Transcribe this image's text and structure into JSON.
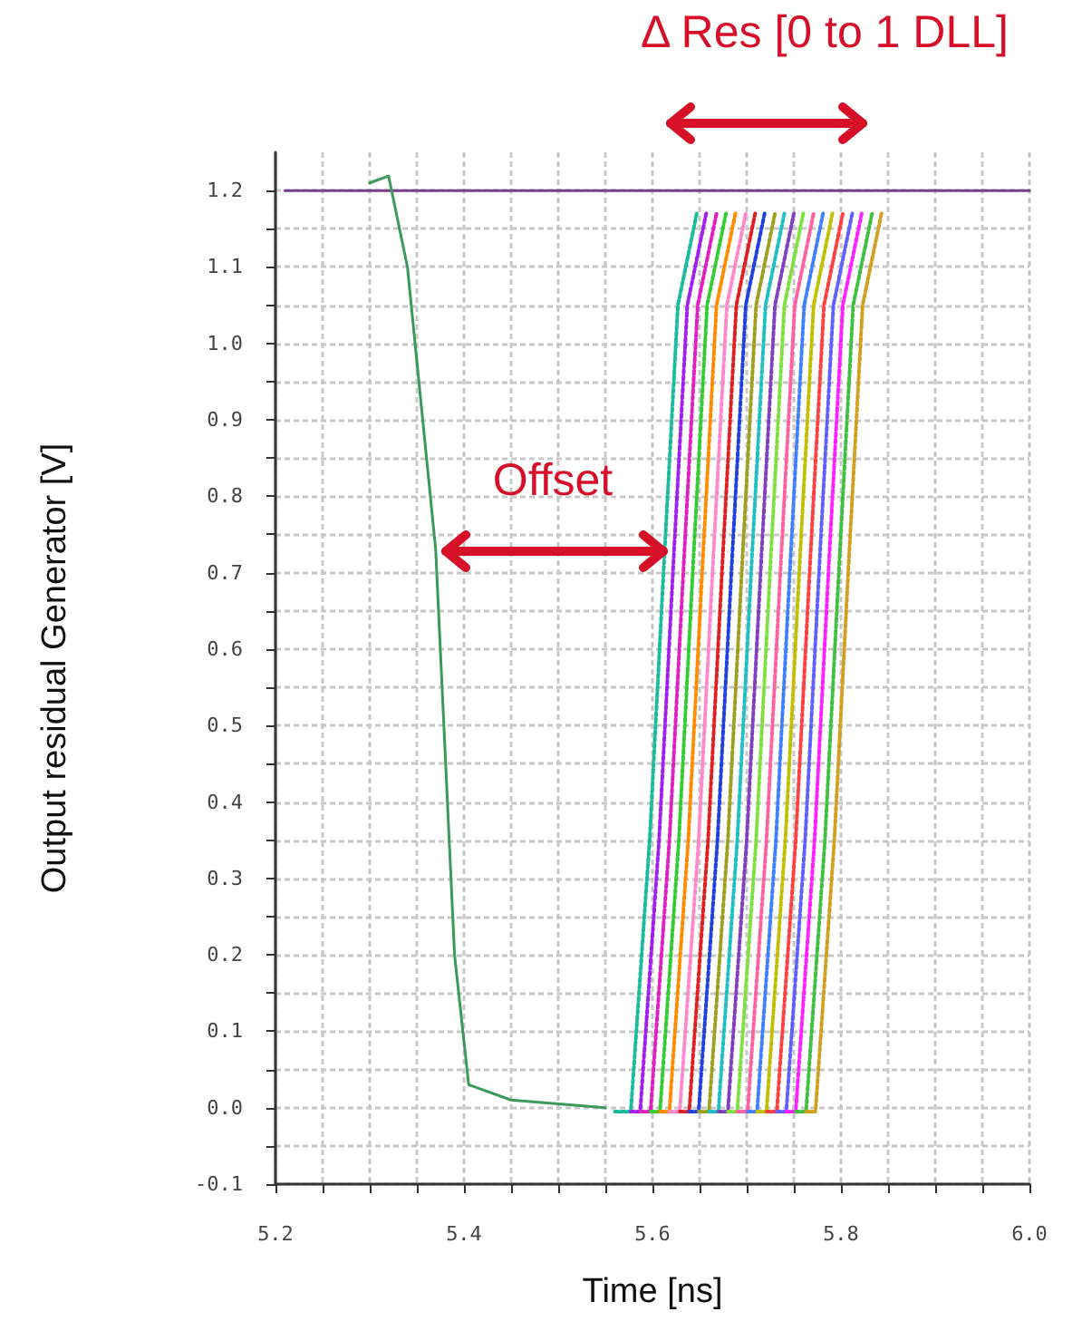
{
  "chart_data": {
    "type": "line",
    "xlabel": "Time [ns]",
    "ylabel": "Output residual Generator [V]",
    "annotations": [
      "Δ Res [0 to 1 DLL]",
      "Offset"
    ],
    "xlim": [
      5.2,
      6.0
    ],
    "xticks": [
      {
        "value": 5.2,
        "label": "5.2"
      },
      {
        "value": 5.25,
        "label": null
      },
      {
        "value": 5.3,
        "label": null
      },
      {
        "value": 5.35,
        "label": null
      },
      {
        "value": 5.4,
        "label": "5.4"
      },
      {
        "value": 5.45,
        "label": null
      },
      {
        "value": 5.5,
        "label": null
      },
      {
        "value": 5.55,
        "label": null
      },
      {
        "value": 5.6,
        "label": "5.6"
      },
      {
        "value": 5.65,
        "label": null
      },
      {
        "value": 5.7,
        "label": null
      },
      {
        "value": 5.75,
        "label": null
      },
      {
        "value": 5.8,
        "label": "5.8"
      },
      {
        "value": 5.85,
        "label": null
      },
      {
        "value": 5.9,
        "label": null
      },
      {
        "value": 5.95,
        "label": null
      },
      {
        "value": 6.0,
        "label": "6.0"
      }
    ],
    "ylim": [
      -0.1,
      1.25
    ],
    "yticks": [
      {
        "value": -0.1,
        "label": "-0.1"
      },
      {
        "value": -0.05,
        "label": null
      },
      {
        "value": 0,
        "label": "0.0"
      },
      {
        "value": 0.05,
        "label": null
      },
      {
        "value": 0.1,
        "label": "0.1"
      },
      {
        "value": 0.15,
        "label": null
      },
      {
        "value": 0.2,
        "label": "0.2"
      },
      {
        "value": 0.25,
        "label": null
      },
      {
        "value": 0.3,
        "label": "0.3"
      },
      {
        "value": 0.35,
        "label": null
      },
      {
        "value": 0.4,
        "label": "0.4"
      },
      {
        "value": 0.45,
        "label": null
      },
      {
        "value": 0.5,
        "label": "0.5"
      },
      {
        "value": 0.55,
        "label": null
      },
      {
        "value": 0.6,
        "label": "0.6"
      },
      {
        "value": 0.65,
        "label": null
      },
      {
        "value": 0.7,
        "label": "0.7"
      },
      {
        "value": 0.75,
        "label": null
      },
      {
        "value": 0.8,
        "label": "0.8"
      },
      {
        "value": 0.85,
        "label": null
      },
      {
        "value": 0.9,
        "label": "0.9"
      },
      {
        "value": 0.95,
        "label": null
      },
      {
        "value": 1.0,
        "label": "1.0"
      },
      {
        "value": 1.05,
        "label": null
      },
      {
        "value": 1.1,
        "label": "1.1"
      },
      {
        "value": 1.15,
        "label": null
      },
      {
        "value": 1.2,
        "label": "1.2"
      }
    ],
    "grid": true,
    "marker": "none",
    "line_style": "dotted",
    "series": [
      {
        "color": "#7b3f8f",
        "line_style": "solid",
        "x": [
          5.21,
          6.0
        ],
        "values": [
          1.2,
          1.2
        ]
      },
      {
        "color": "#3a9a5a",
        "line_style": "solid",
        "x": [
          5.3,
          5.32,
          5.34,
          5.37,
          5.39,
          5.405,
          5.45,
          5.5,
          5.55
        ],
        "values": [
          1.21,
          1.219,
          1.1,
          0.73,
          0.2,
          0.03,
          0.01,
          0.005,
          0.0
        ]
      },
      {
        "color": "#1abc9c",
        "x": [
          5.56,
          5.577,
          5.597,
          5.613,
          5.627,
          5.647
        ],
        "values": [
          -0.005,
          -0.005,
          0.35,
          0.73,
          1.05,
          1.17
        ]
      },
      {
        "color": "#a020f0",
        "x": [
          5.577,
          5.587,
          5.607,
          5.623,
          5.637,
          5.657
        ],
        "values": [
          -0.005,
          -0.005,
          0.35,
          0.73,
          1.05,
          1.17
        ]
      },
      {
        "color": "#e020c0",
        "x": [
          5.587,
          5.598,
          5.618,
          5.634,
          5.648,
          5.668
        ],
        "values": [
          -0.005,
          -0.005,
          0.35,
          0.73,
          1.05,
          1.17
        ]
      },
      {
        "color": "#33cc33",
        "x": [
          5.598,
          5.608,
          5.628,
          5.644,
          5.658,
          5.678
        ],
        "values": [
          -0.005,
          -0.005,
          0.35,
          0.73,
          1.05,
          1.17
        ]
      },
      {
        "color": "#ff8c00",
        "x": [
          5.608,
          5.618,
          5.638,
          5.654,
          5.668,
          5.688
        ],
        "values": [
          -0.005,
          -0.005,
          0.35,
          0.73,
          1.05,
          1.17
        ]
      },
      {
        "color": "#ff88cc",
        "x": [
          5.618,
          5.629,
          5.649,
          5.665,
          5.679,
          5.699
        ],
        "values": [
          -0.005,
          -0.005,
          0.35,
          0.73,
          1.05,
          1.17
        ]
      },
      {
        "color": "#e02020",
        "x": [
          5.629,
          5.639,
          5.659,
          5.675,
          5.689,
          5.709
        ],
        "values": [
          -0.005,
          -0.005,
          0.35,
          0.73,
          1.05,
          1.17
        ]
      },
      {
        "color": "#2040e0",
        "x": [
          5.639,
          5.649,
          5.669,
          5.685,
          5.699,
          5.719
        ],
        "values": [
          -0.005,
          -0.005,
          0.35,
          0.73,
          1.05,
          1.17
        ]
      },
      {
        "color": "#a0a020",
        "x": [
          5.649,
          5.66,
          5.68,
          5.696,
          5.71,
          5.73
        ],
        "values": [
          -0.005,
          -0.005,
          0.35,
          0.73,
          1.05,
          1.17
        ]
      },
      {
        "color": "#20c0c0",
        "x": [
          5.66,
          5.67,
          5.69,
          5.706,
          5.72,
          5.74
        ],
        "values": [
          -0.005,
          -0.005,
          0.35,
          0.73,
          1.05,
          1.17
        ]
      },
      {
        "color": "#8040c0",
        "x": [
          5.67,
          5.68,
          5.7,
          5.716,
          5.73,
          5.75
        ],
        "values": [
          -0.005,
          -0.005,
          0.35,
          0.73,
          1.05,
          1.17
        ]
      },
      {
        "color": "#80e040",
        "x": [
          5.68,
          5.69,
          5.71,
          5.726,
          5.74,
          5.76
        ],
        "values": [
          -0.005,
          -0.005,
          0.35,
          0.73,
          1.05,
          1.17
        ]
      },
      {
        "color": "#ff60a0",
        "x": [
          5.69,
          5.701,
          5.721,
          5.737,
          5.751,
          5.771
        ],
        "values": [
          -0.005,
          -0.005,
          0.35,
          0.73,
          1.05,
          1.17
        ]
      },
      {
        "color": "#4080ff",
        "x": [
          5.701,
          5.711,
          5.731,
          5.747,
          5.761,
          5.781
        ],
        "values": [
          -0.005,
          -0.005,
          0.35,
          0.73,
          1.05,
          1.17
        ]
      },
      {
        "color": "#c0c000",
        "x": [
          5.711,
          5.721,
          5.741,
          5.757,
          5.771,
          5.791
        ],
        "values": [
          -0.005,
          -0.005,
          0.35,
          0.73,
          1.05,
          1.17
        ]
      },
      {
        "color": "#ff4040",
        "x": [
          5.721,
          5.732,
          5.752,
          5.768,
          5.782,
          5.802
        ],
        "values": [
          -0.005,
          -0.005,
          0.35,
          0.73,
          1.05,
          1.17
        ]
      },
      {
        "color": "#6060ff",
        "x": [
          5.732,
          5.742,
          5.762,
          5.778,
          5.792,
          5.812
        ],
        "values": [
          -0.005,
          -0.005,
          0.35,
          0.73,
          1.05,
          1.17
        ]
      },
      {
        "color": "#ff20ff",
        "x": [
          5.742,
          5.752,
          5.772,
          5.788,
          5.802,
          5.822
        ],
        "values": [
          -0.005,
          -0.005,
          0.35,
          0.73,
          1.05,
          1.17
        ]
      },
      {
        "color": "#40c040",
        "x": [
          5.752,
          5.763,
          5.783,
          5.799,
          5.813,
          5.833
        ],
        "values": [
          -0.005,
          -0.005,
          0.35,
          0.73,
          1.05,
          1.17
        ]
      },
      {
        "color": "#d0a020",
        "x": [
          5.763,
          5.773,
          5.793,
          5.809,
          5.823,
          5.843
        ],
        "values": [
          -0.005,
          -0.005,
          0.35,
          0.73,
          1.05,
          1.17
        ]
      }
    ]
  }
}
